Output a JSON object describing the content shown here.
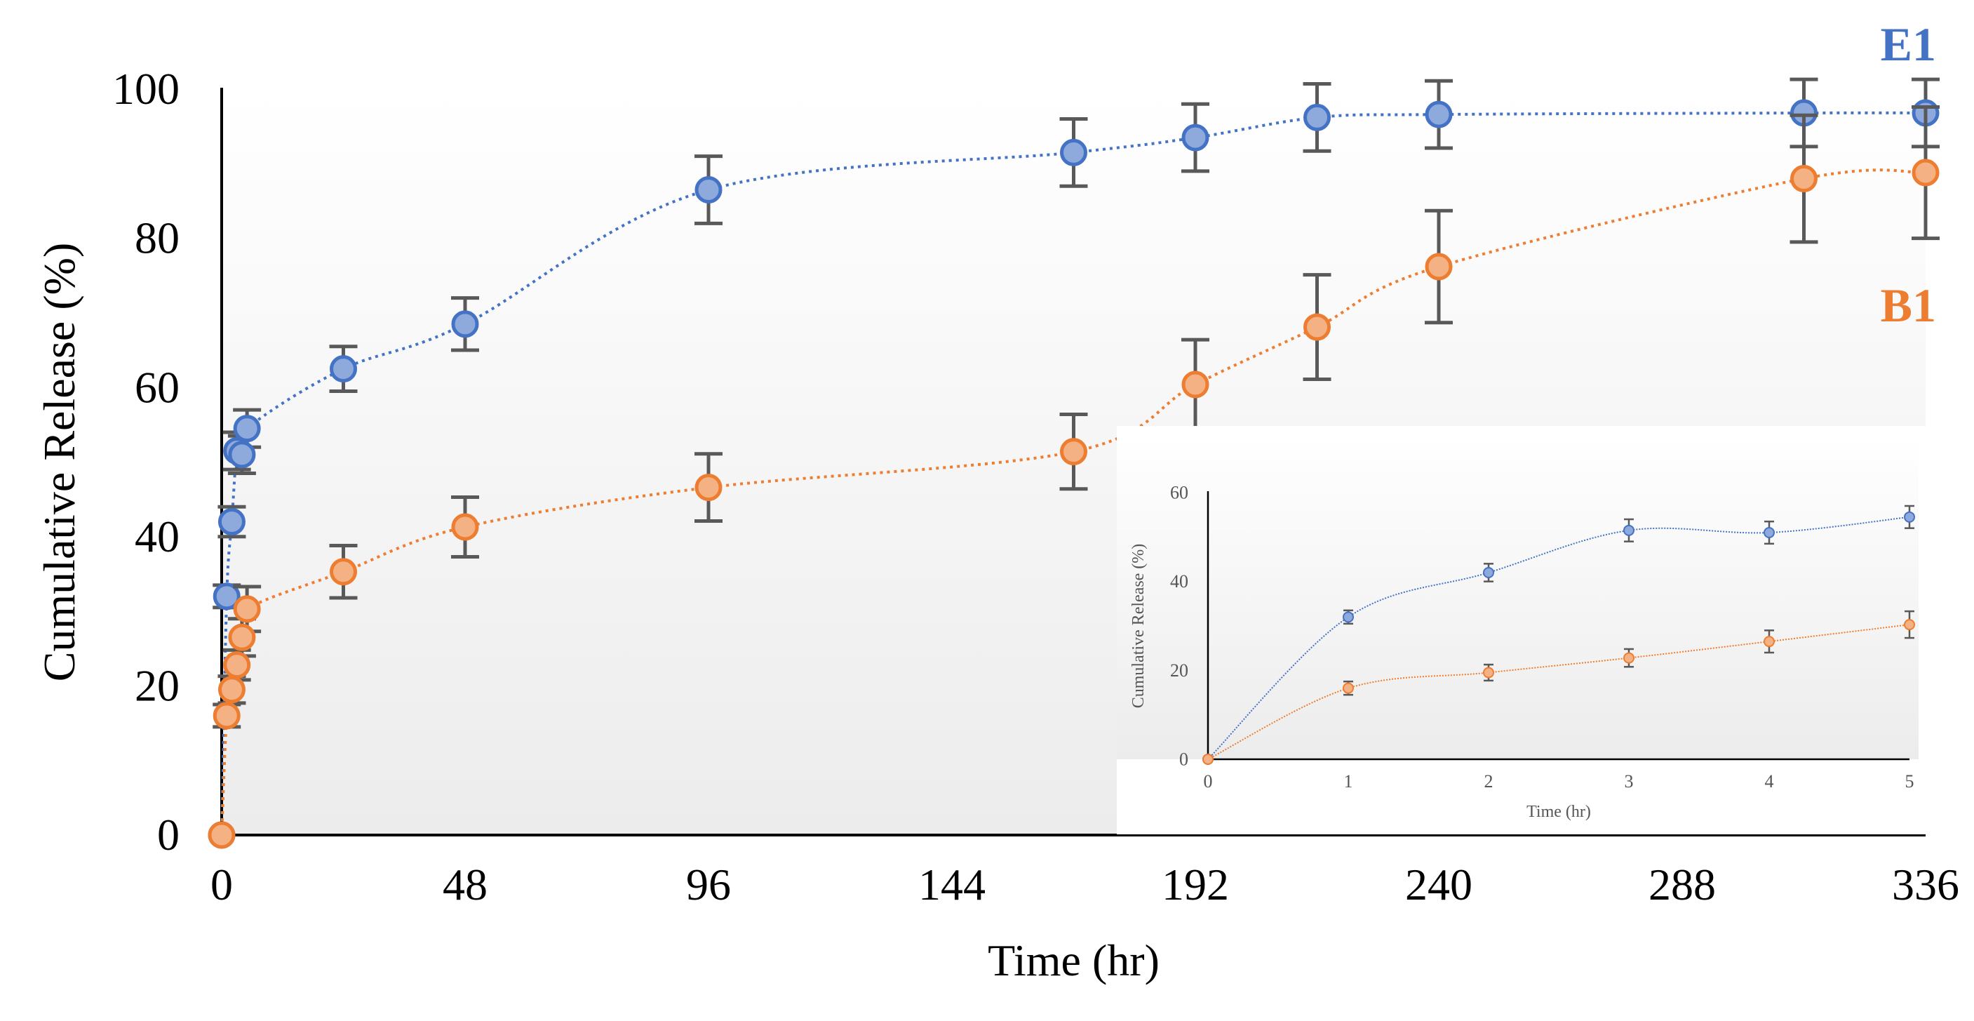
{
  "chart_data": [
    {
      "type": "line",
      "title": "",
      "xlabel": "Time (hr)",
      "ylabel": "Cumulative Release (%)",
      "xlim": [
        0,
        336
      ],
      "ylim": [
        0,
        100
      ],
      "xticks": [
        0,
        48,
        96,
        144,
        192,
        240,
        288,
        336
      ],
      "yticks": [
        0,
        20,
        40,
        60,
        80,
        100
      ],
      "grid": false,
      "legend_placement": "right, next to the line ends",
      "x": [
        0,
        1,
        2,
        3,
        4,
        5,
        24,
        48,
        96,
        168,
        192,
        216,
        240,
        312,
        336
      ],
      "series": [
        {
          "name": "E1",
          "color": "#4472C4",
          "fill": "#8EA9DB",
          "values": [
            0,
            32,
            42,
            51.5,
            51,
            54.5,
            62.5,
            68.5,
            86.5,
            91.5,
            93.5,
            96.2,
            96.6,
            96.8,
            96.8
          ],
          "errors": [
            0,
            1.5,
            2,
            2.5,
            2.5,
            2.5,
            3,
            3.5,
            4.5,
            4.5,
            4.5,
            4.5,
            4.5,
            4.5,
            4.5
          ]
        },
        {
          "name": "B1",
          "color": "#ED7D31",
          "fill": "#F4B183",
          "values": [
            0,
            16,
            19.5,
            22.8,
            26.5,
            30.3,
            35.3,
            41.3,
            46.6,
            51.4,
            60.4,
            68.1,
            76.2,
            88,
            88.8
          ],
          "errors": [
            0,
            1.5,
            1.8,
            2,
            2.5,
            3,
            3.5,
            4,
            4.5,
            5,
            6,
            7,
            7.5,
            8.5,
            8.8
          ]
        }
      ]
    },
    {
      "type": "line",
      "title": "",
      "xlabel": "Time (hr)",
      "ylabel": "Cumulative Release (%)",
      "xlim": [
        0,
        5
      ],
      "ylim": [
        0,
        60
      ],
      "xticks": [
        0,
        1,
        2,
        3,
        4,
        5
      ],
      "yticks": [
        0,
        20,
        40,
        60
      ],
      "grid": false,
      "placement": "inset, bottom-right",
      "x": [
        0,
        1,
        2,
        3,
        4,
        5
      ],
      "series": [
        {
          "name": "E1",
          "color": "#4472C4",
          "fill": "#8EA9DB",
          "values": [
            0,
            32,
            42,
            51.5,
            51,
            54.5
          ],
          "errors": [
            0,
            1.5,
            2,
            2.5,
            2.5,
            2.5
          ]
        },
        {
          "name": "B1",
          "color": "#ED7D31",
          "fill": "#F4B183",
          "values": [
            0,
            16,
            19.5,
            22.8,
            26.5,
            30.3
          ],
          "errors": [
            0,
            1.5,
            1.8,
            2,
            2.5,
            3
          ]
        }
      ]
    }
  ]
}
